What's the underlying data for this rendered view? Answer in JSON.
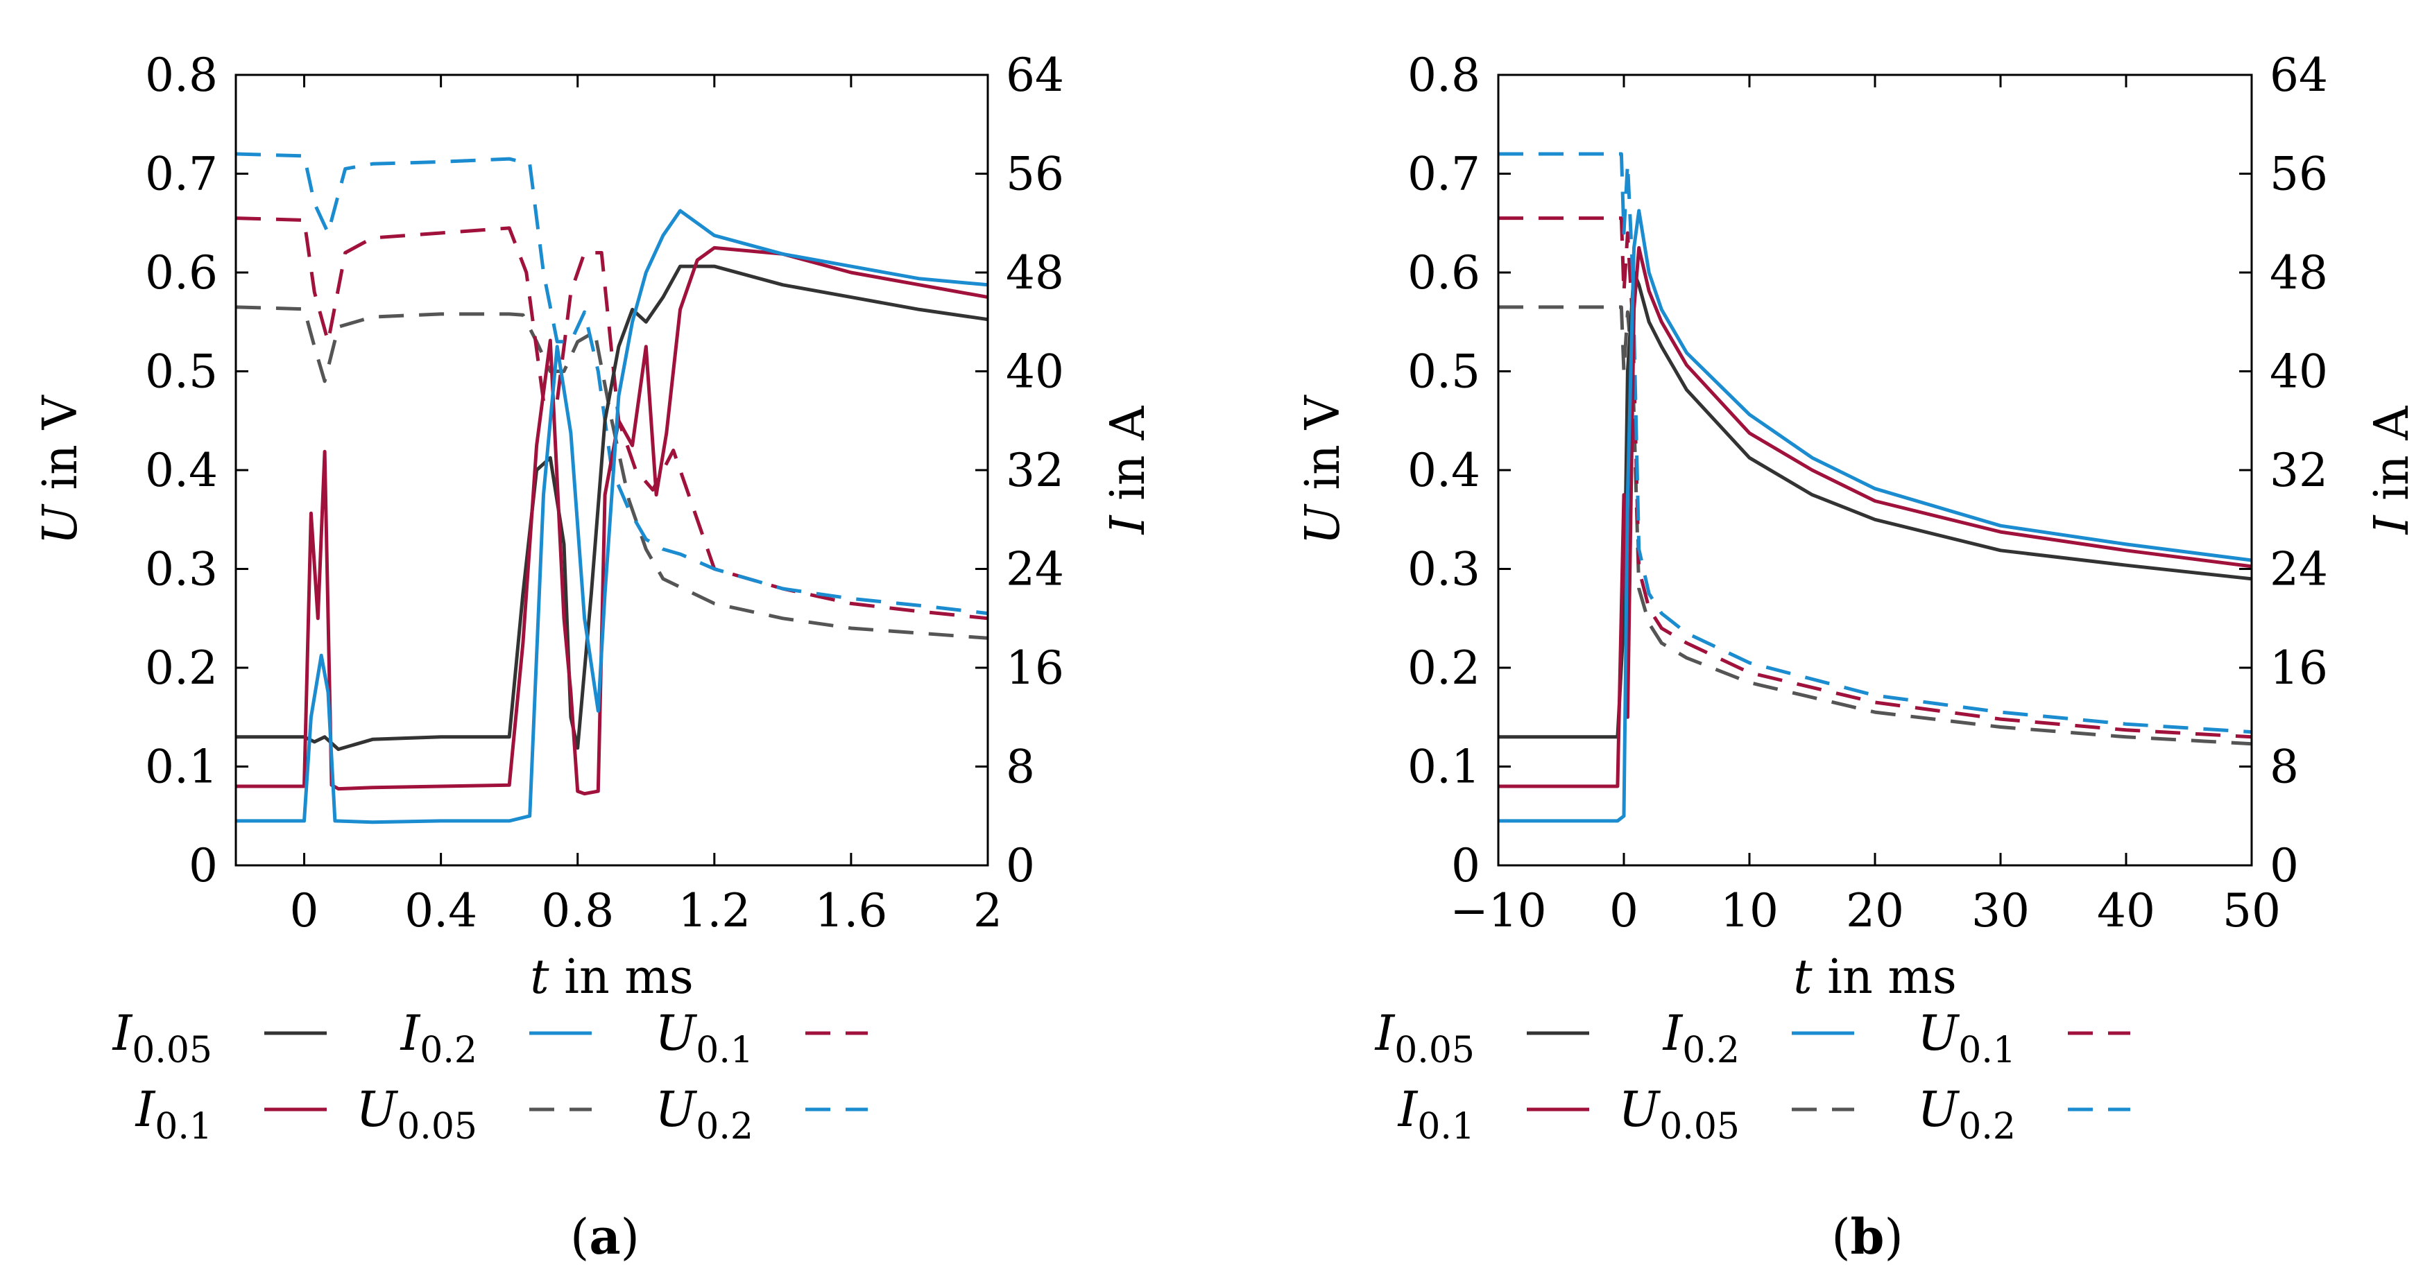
{
  "colors": {
    "I_0.05": "#333333",
    "I_0.1": "#a0113c",
    "I_0.2": "#1b8ccf",
    "U_0.05": "#555555",
    "U_0.1": "#a0113c",
    "U_0.2": "#1b8ccf"
  },
  "legend_entries": [
    {
      "key": "I_0.05",
      "base": "I",
      "sub": "0.05",
      "dash": false
    },
    {
      "key": "I_0.2",
      "base": "I",
      "sub": "0.2",
      "dash": false
    },
    {
      "key": "U_0.1",
      "base": "U",
      "sub": "0.1",
      "dash": true
    },
    {
      "key": "I_0.1",
      "base": "I",
      "sub": "0.1",
      "dash": false
    },
    {
      "key": "U_0.05",
      "base": "U",
      "sub": "0.05",
      "dash": true
    },
    {
      "key": "U_0.2",
      "base": "U",
      "sub": "0.2",
      "dash": true
    }
  ],
  "chart_data": [
    {
      "type": "line",
      "panel_label": "(a)",
      "xlabel": {
        "var": "t",
        "unit": " in ms"
      },
      "ylabel_left": {
        "var": "U",
        "unit": " in V"
      },
      "ylabel_right": {
        "var": "I",
        "unit": " in A"
      },
      "xlim": [
        -0.2,
        2.0
      ],
      "ylim_left": [
        0,
        0.8
      ],
      "ylim_right": [
        0,
        64
      ],
      "xticks": [
        "0",
        "0.4",
        "0.8",
        "1.2",
        "1.6",
        "2"
      ],
      "xtick_values": [
        0,
        0.4,
        0.8,
        1.2,
        1.6,
        2.0
      ],
      "yticks_left": [
        "0",
        "0.1",
        "0.2",
        "0.3",
        "0.4",
        "0.5",
        "0.6",
        "0.7",
        "0.8"
      ],
      "yticks_right": [
        "0",
        "8",
        "16",
        "24",
        "32",
        "40",
        "48",
        "56",
        "64"
      ],
      "grid": false,
      "legend_position": "bottom",
      "series": [
        {
          "key": "U_0.05",
          "axis": "left",
          "x": [
            -0.2,
            0,
            0.03,
            0.06,
            0.1,
            0.2,
            0.4,
            0.6,
            0.64,
            0.68,
            0.72,
            0.76,
            0.8,
            0.85,
            0.9,
            0.95,
            1.0,
            1.05,
            1.2,
            1.4,
            1.6,
            1.8,
            2.0
          ],
          "y": [
            0.565,
            0.563,
            0.525,
            0.49,
            0.545,
            0.555,
            0.558,
            0.558,
            0.557,
            0.53,
            0.5,
            0.5,
            0.53,
            0.54,
            0.45,
            0.37,
            0.32,
            0.29,
            0.265,
            0.25,
            0.24,
            0.235,
            0.23
          ]
        },
        {
          "key": "U_0.1",
          "axis": "left",
          "x": [
            -0.2,
            0,
            0.03,
            0.07,
            0.12,
            0.2,
            0.4,
            0.6,
            0.65,
            0.7,
            0.74,
            0.78,
            0.82,
            0.87,
            0.92,
            0.97,
            1.02,
            1.08,
            1.2,
            1.4,
            1.6,
            1.8,
            2.0
          ],
          "y": [
            0.655,
            0.653,
            0.58,
            0.53,
            0.62,
            0.635,
            0.64,
            0.645,
            0.6,
            0.47,
            0.47,
            0.58,
            0.62,
            0.62,
            0.45,
            0.4,
            0.38,
            0.42,
            0.3,
            0.28,
            0.265,
            0.257,
            0.25
          ]
        },
        {
          "key": "U_0.2",
          "axis": "left",
          "x": [
            -0.2,
            0,
            0.03,
            0.07,
            0.12,
            0.2,
            0.4,
            0.6,
            0.66,
            0.7,
            0.74,
            0.78,
            0.82,
            0.86,
            0.9,
            0.95,
            1.0,
            1.05,
            1.1,
            1.2,
            1.4,
            1.6,
            1.8,
            2.0
          ],
          "y": [
            0.72,
            0.718,
            0.67,
            0.64,
            0.705,
            0.71,
            0.712,
            0.715,
            0.71,
            0.6,
            0.53,
            0.53,
            0.56,
            0.5,
            0.4,
            0.36,
            0.33,
            0.32,
            0.315,
            0.3,
            0.28,
            0.27,
            0.263,
            0.255
          ]
        },
        {
          "key": "I_0.05",
          "axis": "right",
          "x": [
            -0.2,
            0,
            0.03,
            0.06,
            0.1,
            0.2,
            0.4,
            0.6,
            0.64,
            0.68,
            0.72,
            0.76,
            0.78,
            0.8,
            0.84,
            0.88,
            0.92,
            0.96,
            1.0,
            1.05,
            1.1,
            1.2,
            1.4,
            1.6,
            1.8,
            2.0
          ],
          "y": [
            10.4,
            10.4,
            10,
            10.4,
            9.4,
            10.2,
            10.4,
            10.4,
            22,
            32,
            33,
            26,
            12,
            9.5,
            22,
            36,
            42,
            45,
            44,
            46,
            48.5,
            48.5,
            47,
            46,
            45,
            44.2
          ]
        },
        {
          "key": "I_0.1",
          "axis": "right",
          "x": [
            -0.2,
            0,
            0.02,
            0.04,
            0.06,
            0.08,
            0.1,
            0.2,
            0.4,
            0.6,
            0.64,
            0.68,
            0.72,
            0.76,
            0.78,
            0.8,
            0.82,
            0.86,
            0.88,
            0.92,
            0.96,
            1.0,
            1.03,
            1.06,
            1.1,
            1.15,
            1.2,
            1.4,
            1.6,
            1.8,
            2.0
          ],
          "y": [
            6.4,
            6.4,
            28.5,
            20,
            33.5,
            6.5,
            6.2,
            6.3,
            6.4,
            6.5,
            18,
            34,
            42.5,
            20,
            14,
            6,
            5.8,
            6,
            30,
            36,
            34,
            42,
            30,
            35,
            45,
            49,
            50,
            49.5,
            48,
            47,
            46
          ]
        },
        {
          "key": "I_0.2",
          "axis": "right",
          "x": [
            -0.2,
            0,
            0.02,
            0.05,
            0.07,
            0.09,
            0.2,
            0.4,
            0.6,
            0.66,
            0.7,
            0.74,
            0.78,
            0.82,
            0.86,
            0.88,
            0.92,
            0.96,
            1.0,
            1.05,
            1.1,
            1.2,
            1.4,
            1.6,
            1.8,
            2.0
          ],
          "y": [
            3.6,
            3.6,
            12,
            17,
            14,
            3.6,
            3.5,
            3.6,
            3.6,
            4,
            30,
            42,
            35,
            20,
            12.5,
            22,
            38,
            44,
            48,
            51,
            53,
            51,
            49.5,
            48.5,
            47.5,
            47
          ]
        }
      ]
    },
    {
      "type": "line",
      "panel_label": "(b)",
      "xlabel": {
        "var": "t",
        "unit": " in ms"
      },
      "ylabel_left": {
        "var": "U",
        "unit": " in V"
      },
      "ylabel_right": {
        "var": "I",
        "unit": " in A"
      },
      "xlim": [
        -10,
        50
      ],
      "ylim_left": [
        0,
        0.8
      ],
      "ylim_right": [
        0,
        64
      ],
      "xticks": [
        "−10",
        "0",
        "10",
        "20",
        "30",
        "40",
        "50"
      ],
      "xtick_values": [
        -10,
        0,
        10,
        20,
        30,
        40,
        50
      ],
      "yticks_left": [
        "0",
        "0.1",
        "0.2",
        "0.3",
        "0.4",
        "0.5",
        "0.6",
        "0.7",
        "0.8"
      ],
      "yticks_right": [
        "0",
        "8",
        "16",
        "24",
        "32",
        "40",
        "48",
        "56",
        "64"
      ],
      "grid": false,
      "legend_position": "bottom",
      "series": [
        {
          "key": "U_0.05",
          "axis": "left",
          "x": [
            -10,
            -0.2,
            0,
            0.3,
            0.7,
            1.2,
            2,
            3,
            5,
            10,
            20,
            30,
            40,
            50
          ],
          "y": [
            0.565,
            0.565,
            0.5,
            0.56,
            0.5,
            0.28,
            0.245,
            0.225,
            0.21,
            0.185,
            0.155,
            0.14,
            0.13,
            0.123
          ]
        },
        {
          "key": "U_0.1",
          "axis": "left",
          "x": [
            -10,
            -0.2,
            0,
            0.3,
            0.7,
            1.2,
            2,
            3,
            5,
            10,
            20,
            30,
            40,
            50
          ],
          "y": [
            0.655,
            0.655,
            0.58,
            0.64,
            0.55,
            0.3,
            0.26,
            0.24,
            0.225,
            0.195,
            0.165,
            0.148,
            0.137,
            0.13
          ]
        },
        {
          "key": "U_0.2",
          "axis": "left",
          "x": [
            -10,
            -0.2,
            0,
            0.3,
            0.7,
            1.2,
            2,
            3,
            5,
            10,
            20,
            30,
            40,
            50
          ],
          "y": [
            0.72,
            0.72,
            0.64,
            0.71,
            0.6,
            0.32,
            0.275,
            0.255,
            0.235,
            0.205,
            0.172,
            0.155,
            0.143,
            0.135
          ]
        },
        {
          "key": "I_0.05",
          "axis": "right",
          "x": [
            -10,
            -0.5,
            0,
            0.3,
            0.8,
            1.2,
            2,
            3,
            5,
            10,
            15,
            20,
            30,
            40,
            50
          ],
          "y": [
            10.4,
            10.4,
            20,
            40,
            48,
            47,
            44,
            42,
            38.5,
            33,
            30,
            28,
            25.5,
            24.3,
            23.2
          ]
        },
        {
          "key": "I_0.1",
          "axis": "right",
          "x": [
            -10,
            -0.5,
            0,
            0.3,
            0.8,
            1.2,
            2,
            3,
            5,
            10,
            15,
            20,
            30,
            40,
            50
          ],
          "y": [
            6.4,
            6.4,
            30,
            12,
            45,
            50,
            46.5,
            44,
            40.5,
            35,
            32,
            29.5,
            27,
            25.5,
            24.2
          ]
        },
        {
          "key": "I_0.2",
          "axis": "right",
          "x": [
            -10,
            -0.5,
            0,
            0.3,
            0.8,
            1.2,
            2,
            3,
            5,
            10,
            15,
            20,
            30,
            40,
            50
          ],
          "y": [
            3.6,
            3.6,
            4,
            30,
            50,
            53,
            48,
            45,
            41.5,
            36.5,
            33,
            30.5,
            27.5,
            26,
            24.7
          ]
        }
      ]
    }
  ]
}
